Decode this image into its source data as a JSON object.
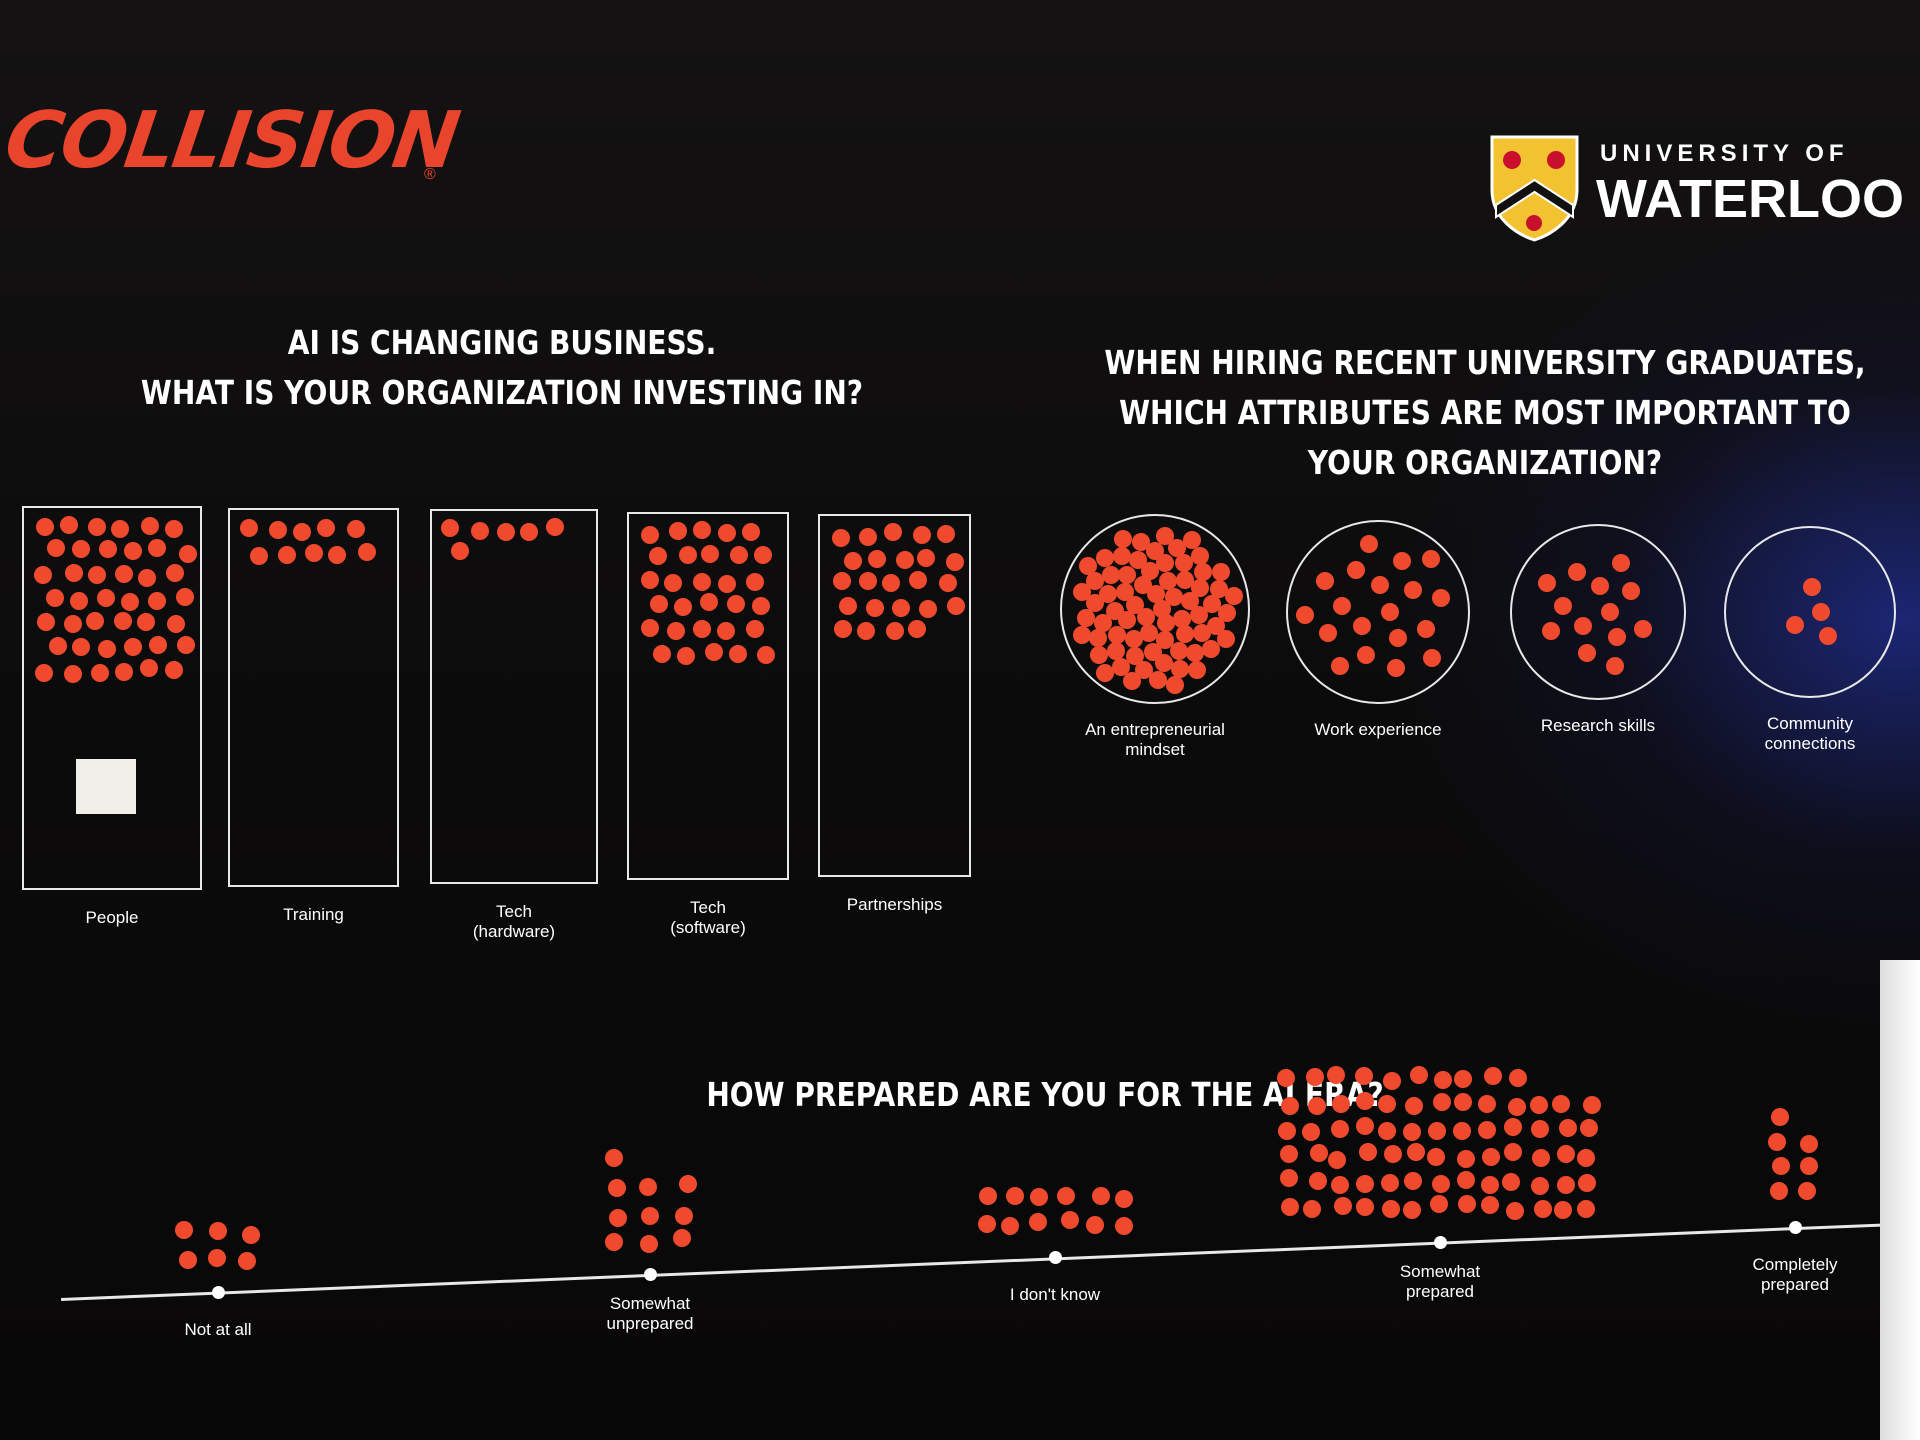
{
  "branding": {
    "left_logo": "COLLISION",
    "registered": "®",
    "right_logo_top": "UNIVERSITY OF",
    "right_logo_main": "WATERLOO"
  },
  "colors": {
    "dot": "#f04a2e",
    "logo": "#e8452c",
    "background": "#0c0b0b",
    "outline": "#e8e8e8"
  },
  "chart_data": [
    {
      "type": "bar",
      "style": "dot-vote boxes",
      "title": [
        "AI IS CHANGING BUSINESS.",
        "WHAT IS YOUR ORGANIZATION INVESTING IN?"
      ],
      "categories": [
        "People",
        "Training",
        "Tech\n(hardware)",
        "Tech\n(software)",
        "Partnerships"
      ],
      "values": [
        42,
        10,
        6,
        30,
        24
      ]
    },
    {
      "type": "bar",
      "style": "dot-vote circles",
      "title": [
        "WHEN HIRING RECENT UNIVERSITY GRADUATES,",
        "WHICH ATTRIBUTES ARE MOST IMPORTANT TO",
        "YOUR ORGANIZATION?"
      ],
      "categories": [
        "An entrepreneurial\nmindset",
        "Work experience",
        "Research skills",
        "Community\nconnections"
      ],
      "values": [
        70,
        19,
        13,
        4
      ]
    },
    {
      "type": "scatter",
      "style": "dot-vote scale",
      "title": [
        "HOW PREPARED ARE YOU FOR THE AI ERA?"
      ],
      "categories": [
        "Not at all",
        "Somewhat\nunprepared",
        "I don't know",
        "Somewhat\nprepared",
        "Completely\nprepared"
      ],
      "values": [
        6,
        10,
        12,
        75,
        7
      ]
    }
  ]
}
